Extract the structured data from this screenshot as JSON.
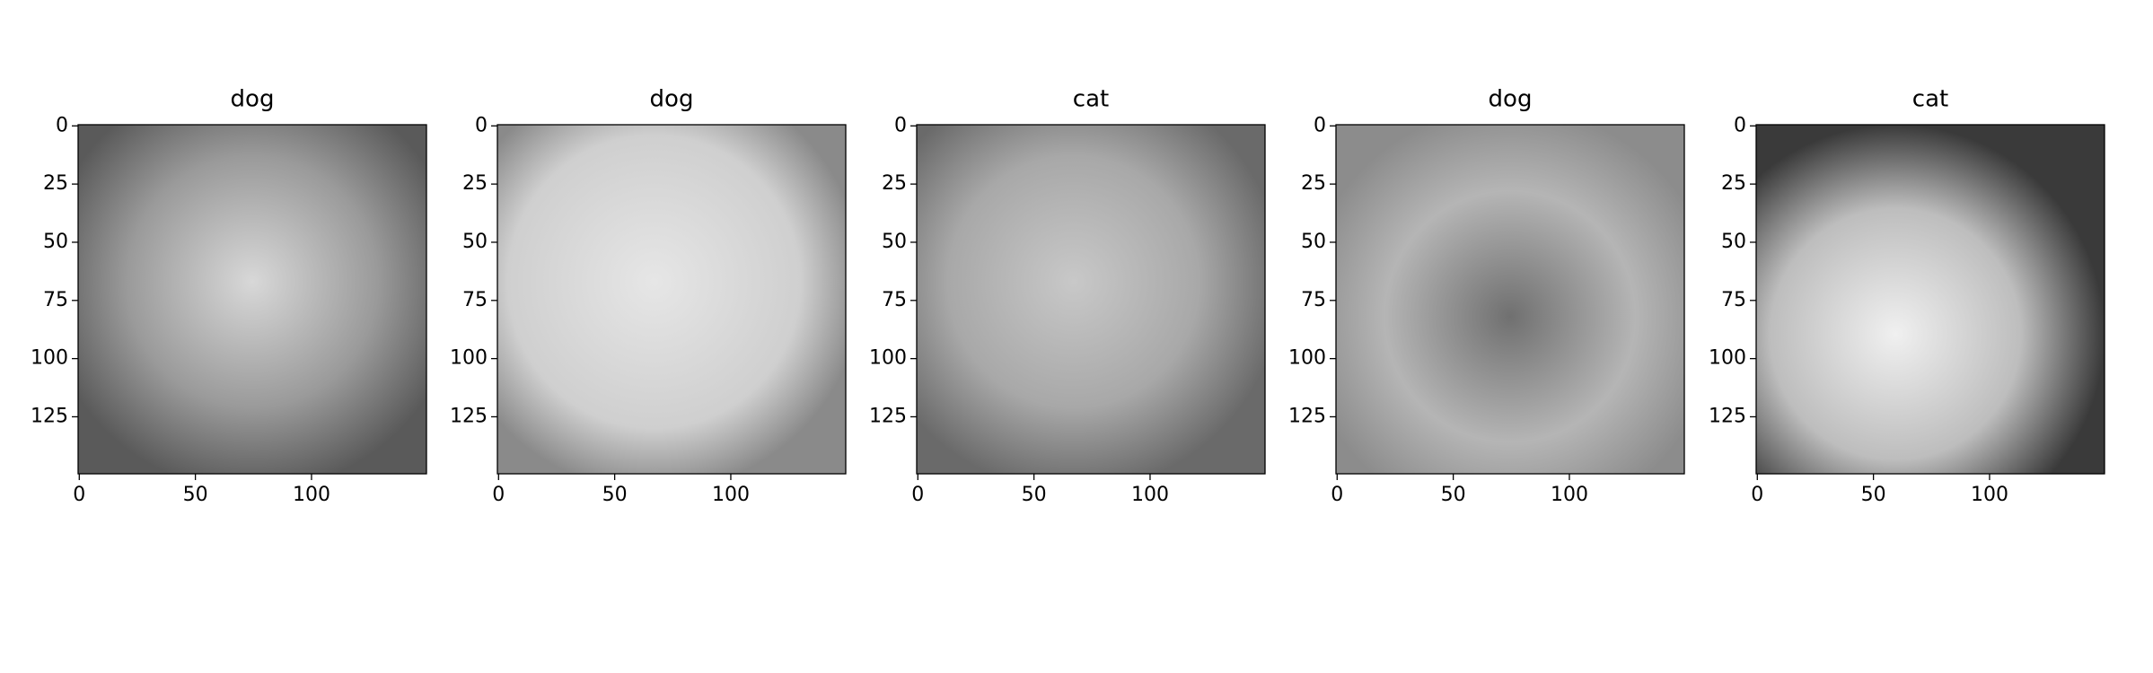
{
  "chart_data": [
    {
      "type": "image",
      "title": "dog",
      "xlim": [
        -0.5,
        149.5
      ],
      "ylim": [
        149.5,
        -0.5
      ],
      "xticks": [
        0,
        50,
        100
      ],
      "yticks": [
        0,
        25,
        50,
        75,
        100,
        125
      ]
    },
    {
      "type": "image",
      "title": "dog",
      "xlim": [
        -0.5,
        149.5
      ],
      "ylim": [
        149.5,
        -0.5
      ],
      "xticks": [
        0,
        50,
        100
      ],
      "yticks": [
        0,
        25,
        50,
        75,
        100,
        125
      ]
    },
    {
      "type": "image",
      "title": "cat",
      "xlim": [
        -0.5,
        149.5
      ],
      "ylim": [
        149.5,
        -0.5
      ],
      "xticks": [
        0,
        50,
        100
      ],
      "yticks": [
        0,
        25,
        50,
        75,
        100,
        125
      ]
    },
    {
      "type": "image",
      "title": "dog",
      "xlim": [
        -0.5,
        149.5
      ],
      "ylim": [
        149.5,
        -0.5
      ],
      "xticks": [
        0,
        50,
        100
      ],
      "yticks": [
        0,
        25,
        50,
        75,
        100,
        125
      ]
    },
    {
      "type": "image",
      "title": "cat",
      "xlim": [
        -0.5,
        149.5
      ],
      "ylim": [
        149.5,
        -0.5
      ],
      "xticks": [
        0,
        50,
        100
      ],
      "yticks": [
        0,
        25,
        50,
        75,
        100,
        125
      ]
    }
  ]
}
